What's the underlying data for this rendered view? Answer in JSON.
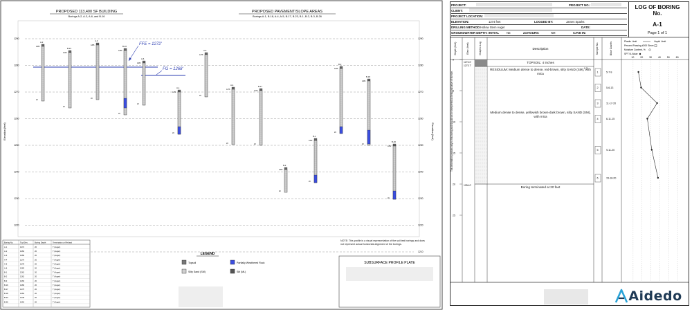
{
  "profile": {
    "building_title": "PROPOSED 113,400 SF BUILDING",
    "building_borings": "Borings A-2, A-3, A-6, and B-16",
    "pavement_title": "PROPOSED PAVEMENT/SLOPE AREAS",
    "pavement_borings": "Borings A-1, B-18, A-4, A-5, B-17, B-23, B-1, B-2, B-3, B-26",
    "ffe_label": "FFE = 1272'",
    "fg_label": "FG = 1268'",
    "left_axis_label": "Elevation (feet)",
    "right_axis_label": "Elevation (feet)",
    "elevation_ticks": [
      "1290",
      "1280",
      "1270",
      "1260",
      "1250",
      "1240",
      "1230",
      "1220",
      "1210"
    ],
    "summary_headers": [
      "Boring No.",
      "Top Elev.",
      "Boring Depth",
      "Termination or Refusal"
    ],
    "summary_rows": [
      [
        "A-1",
        "1274",
        "20",
        "T (Auger)"
      ],
      [
        "A-2",
        "1282",
        "20",
        "T (Auger)"
      ],
      [
        "A-3",
        "1286",
        "20",
        "T (Auger)"
      ],
      [
        "A-4",
        "1276",
        "20",
        "T (Auger)"
      ],
      [
        "A-5",
        "1278",
        "20",
        "T (Auger)"
      ],
      [
        "A-6",
        "1283",
        "20",
        "T (Auger)"
      ],
      [
        "B-1",
        "1262",
        "20",
        "T (Auger)"
      ],
      [
        "B-2",
        "1262",
        "20",
        "T (Auger)"
      ],
      [
        "B-3",
        "1266",
        "20",
        "T (Auger)"
      ],
      [
        "B-16",
        "1280",
        "20",
        "T (Auger)"
      ],
      [
        "B-17",
        "1275",
        "20",
        "T (Auger)"
      ],
      [
        "B-18",
        "1284",
        "20",
        "T (Auger)"
      ],
      [
        "B-23",
        "1248",
        "20",
        "T (Auger)"
      ],
      [
        "B-26",
        "1252",
        "20",
        "T (Auger)"
      ]
    ],
    "legend_title": "LEGEND",
    "legend": {
      "topsoil": "Topsoil",
      "pwr": "Partially Weathered Rock",
      "silty_sand": "Silty Sand (SM)",
      "silt": "Silt (ML)"
    },
    "note": "NOTE: This profile is a visual representation of the soil test borings and does not represent actual horizontal alignment of the borings.",
    "plate_title": "SUBSURFACE PROFILE PLATE"
  },
  "log": {
    "project_label": "PROJECT:",
    "project_no_label": "PROJECT NO.:",
    "client_label": "CLIENT:",
    "location_label": "PROJECT LOCATION:",
    "elevation_label": "ELEVATION:",
    "elevation_value": "1274 feet",
    "logged_by_label": "LOGGED BY:",
    "logged_by_value": "James Sparks",
    "drilling_label": "DRILLING METHOD:",
    "drilling_value": "Hollow Stem Auger",
    "date_label": "DATE:",
    "gw_label": "GROUNDWATER DEPTH: INITIAL",
    "gw_initial": "NE",
    "gw_24_label": "24 HOURS:",
    "gw_24": "NM",
    "cave_label": "CAVE IN:",
    "title_line1": "LOG OF BORING",
    "title_line2": "No.",
    "boring_id": "A-1",
    "page": "Page 1 of 1",
    "col_depth": "Depth (feet)",
    "col_elev": "Elev. (feet)",
    "col_graphic": "Graphic Log",
    "col_description": "Description",
    "col_sample": "Sample No.",
    "col_blows": "Blow Counts",
    "legend_plastic": "Plastic Limit",
    "legend_liquid": "Liquid Limit",
    "legend_passing": "Percent Passing #200 Sieve",
    "legend_moisture": "Moisture Content, %",
    "legend_spt": "SPT N-Value",
    "chart_ticks": [
      "10",
      "20",
      "30",
      "40",
      "50",
      "60"
    ],
    "depth_ticks": [
      "0",
      "5",
      "10",
      "15",
      "20",
      "25"
    ],
    "elev_marks": [
      "1274.0'",
      "1273.7'",
      "1254.0'"
    ],
    "topsoil_desc": "TOPSOIL: 4 inches",
    "residuum_desc": "RESIDUUM: Medium dense to dense, red-brown, silty SAND (SM), with mica",
    "lower_desc": "Medium dense to dense, yellowish brown-dark brown, silty SAND (SM), with mica",
    "termination": "Boring terminated at 20 feet",
    "depth_mark": "0.3'",
    "samples": [
      "1",
      "2",
      "3",
      "4",
      "5",
      "6"
    ],
    "blow_counts": [
      "5-7-9",
      "5-6-13",
      "11-17-20",
      "6-11-15",
      "9-11-20",
      "15-18-20"
    ],
    "side_note": "This information pertains only to this boring and should not be interpreted as being indicative of the site.",
    "brand": "Aidedo"
  },
  "chart_data": {
    "type": "line",
    "title": "",
    "xlabel": "SPT N-Value",
    "ylabel": "Depth (feet)",
    "xlim": [
      0,
      70
    ],
    "ylim": [
      0,
      25
    ],
    "series": [
      {
        "name": "SPT N-Value",
        "x": [
          16,
          19,
          37,
          26,
          31,
          38
        ],
        "y": [
          2,
          4.5,
          7,
          9.5,
          14.5,
          19
        ]
      }
    ]
  }
}
